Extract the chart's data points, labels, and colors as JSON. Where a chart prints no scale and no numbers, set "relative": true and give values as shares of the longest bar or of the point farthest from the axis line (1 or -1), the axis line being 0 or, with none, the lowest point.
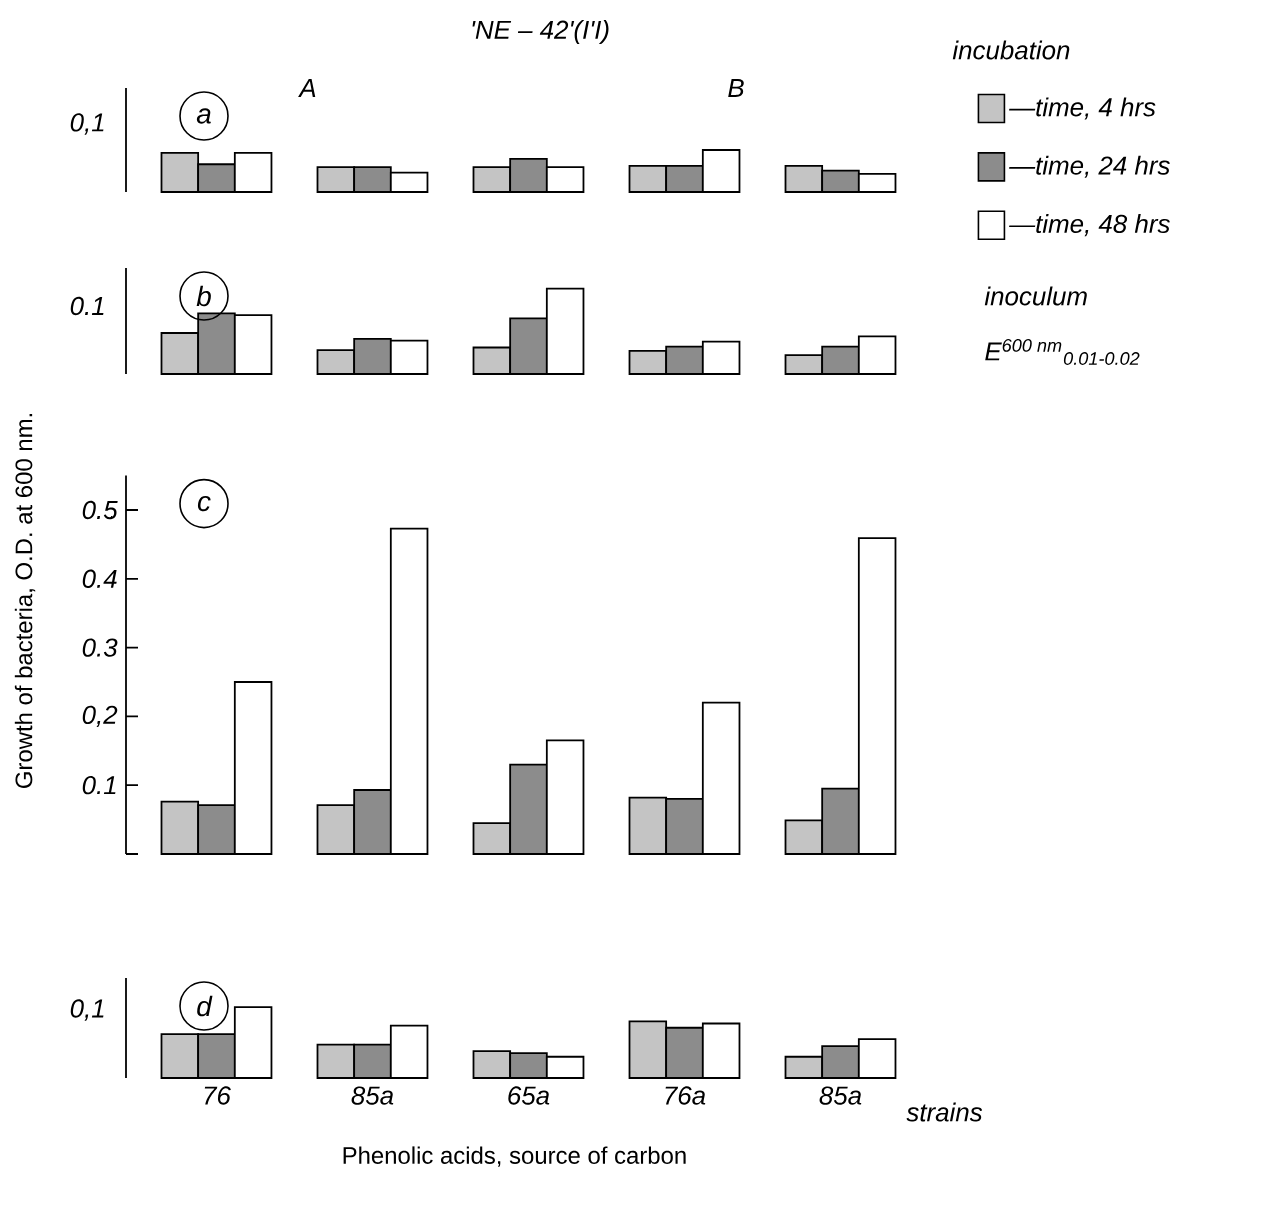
{
  "chart_data": [
    {
      "type": "bar",
      "title": "a",
      "legend_title": "incubation",
      "legend": "right",
      "relative": true,
      "annotations": [
        "'NE – 42'(I'I)",
        "A",
        "B",
        "inoculum",
        "E$^{600 nm}$$_{0.01-0.02}$",
        "0,1"
      ],
      "categories": [
        null,
        null,
        null,
        null,
        null
      ],
      "series": [
        {
          "name": "—time, 4 hrs",
          "color": "#c4c4c4",
          "values": [
            0.93,
            0.59,
            0.59,
            0.62,
            0.62
          ]
        },
        {
          "name": "—time, 24 hrs",
          "color": "#8c8c8c",
          "values": [
            0.66,
            0.59,
            0.79,
            0.62,
            0.51
          ]
        },
        {
          "name": "—time, 48 hrs",
          "color": "#ffffff",
          "values": [
            0.93,
            0.46,
            0.59,
            1,
            0.43
          ]
        }
      ]
    },
    {
      "type": "bar",
      "title": "b",
      "relative": true,
      "annotations": [
        "0.1"
      ],
      "categories": [
        null,
        null,
        null,
        null,
        null
      ],
      "series": [
        {
          "color": "#c4c4c4",
          "values": [
            0.48,
            0.28,
            0.31,
            0.27,
            0.22
          ]
        },
        {
          "color": "#8c8c8c",
          "values": [
            0.71,
            0.41,
            0.65,
            0.32,
            0.32
          ]
        },
        {
          "color": "#ffffff",
          "values": [
            0.69,
            0.39,
            1,
            0.38,
            0.44
          ]
        }
      ]
    },
    {
      "type": "bar",
      "title": "c",
      "ylabel": "Growth of bacteria, O.D. at 600 nm.",
      "categories": [
        null,
        null,
        null,
        null,
        null
      ],
      "series": [
        {
          "color": "#c4c4c4",
          "values": [
            0.076,
            0.071,
            0.045,
            0.082,
            0.049
          ]
        },
        {
          "color": "#8c8c8c",
          "values": [
            0.071,
            0.093,
            0.13,
            0.08,
            0.095
          ]
        },
        {
          "color": "#ffffff",
          "values": [
            0.25,
            0.473,
            0.165,
            0.22,
            0.459
          ]
        }
      ],
      "ylim": [
        0,
        0.55
      ],
      "yticks": [
        {
          "value": 0,
          "label": null
        },
        {
          "value": 0.1,
          "label": "0.1"
        },
        {
          "value": 0.2,
          "label": "0,2"
        },
        {
          "value": 0.3,
          "label": "0.3"
        },
        {
          "value": 0.4,
          "label": "0.4"
        },
        {
          "value": 0.5,
          "label": "0.5"
        }
      ]
    },
    {
      "type": "bar",
      "title": "d",
      "tick_labels": "x",
      "relative": true,
      "xlabel": "Phenolic acids, source of carbon",
      "annotations": [
        "strains",
        "0,1"
      ],
      "categories": [
        "76",
        "85a",
        "65a",
        "76a",
        "85a"
      ],
      "series": [
        {
          "color": "#c4c4c4",
          "values": [
            0.62,
            0.47,
            0.38,
            0.8,
            0.3
          ]
        },
        {
          "color": "#8c8c8c",
          "values": [
            0.62,
            0.47,
            0.35,
            0.71,
            0.45
          ]
        },
        {
          "color": "#ffffff",
          "values": [
            1,
            0.74,
            0.3,
            0.77,
            0.55
          ]
        }
      ]
    }
  ]
}
